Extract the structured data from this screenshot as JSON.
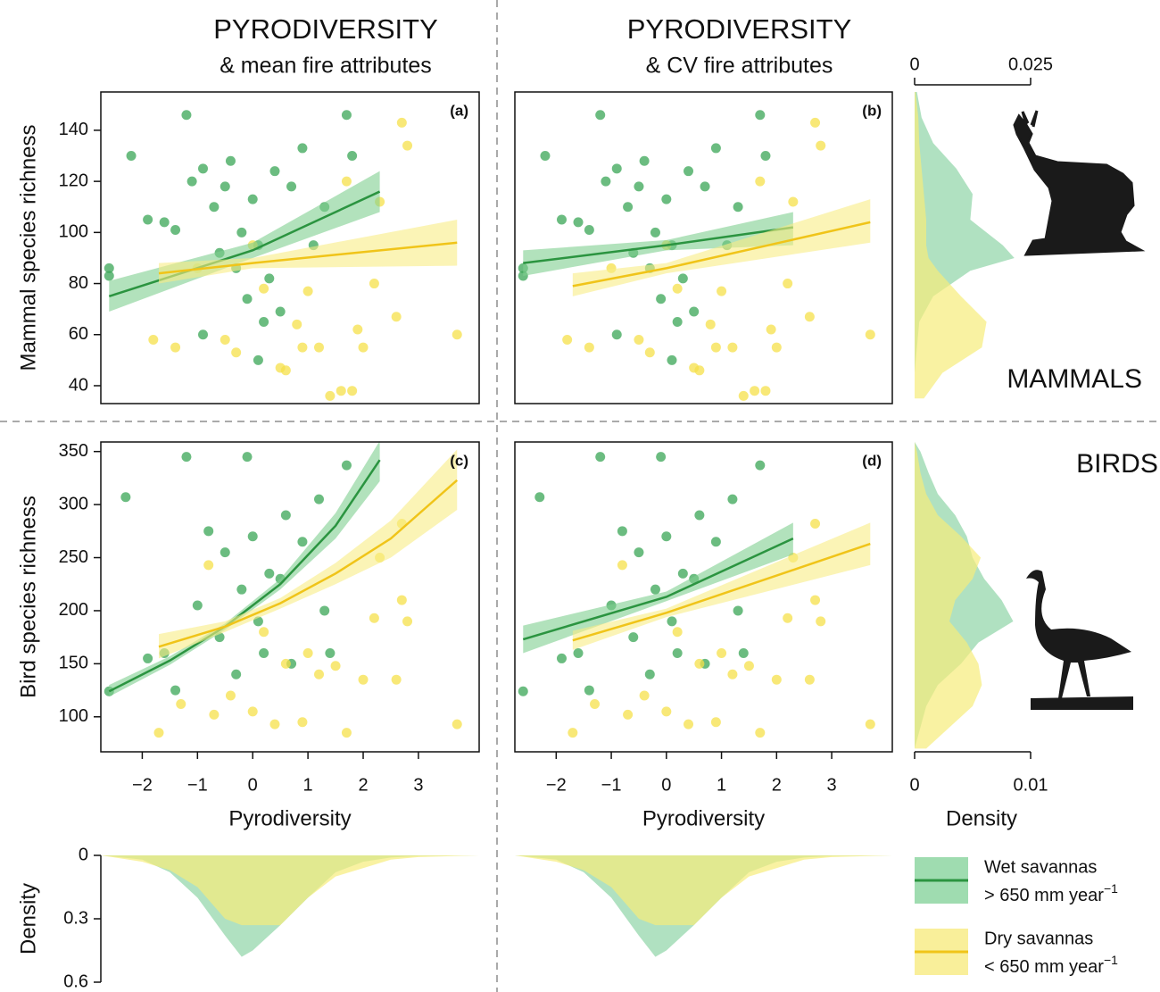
{
  "chart_data": [
    {
      "type": "scatter",
      "title": "PYRODIVERSITY",
      "subtitle": "& mean fire attributes",
      "panel_label": "(a)",
      "y_label": "Mammal species richness",
      "xlim": [
        -2.75,
        4.1
      ],
      "ylim": [
        33,
        155
      ],
      "yticks": [
        40,
        60,
        80,
        100,
        120,
        140
      ],
      "series": [
        {
          "color": "#3aa655",
          "line_color": "#2b9440",
          "band_color": "#7fcf8f",
          "x": [
            -2.6,
            -2.6,
            -2.2,
            -1.9,
            -1.6,
            -1.4,
            -1.2,
            -1.1,
            -0.9,
            -0.7,
            -0.6,
            -0.5,
            -0.4,
            -0.3,
            -0.2,
            -0.1,
            0,
            0.1,
            0.2,
            0.3,
            0.4,
            0.5,
            0.7,
            0.9,
            1.1,
            1.3,
            1.7,
            1.8,
            -0.9,
            0.1
          ],
          "values": [
            86,
            83,
            130,
            105,
            104,
            101,
            146,
            120,
            125,
            110,
            92,
            118,
            128,
            86,
            100,
            74,
            113,
            95,
            65,
            82,
            124,
            69,
            118,
            133,
            95,
            110,
            146,
            130,
            60,
            50
          ],
          "fit": {
            "x": [
              -2.6,
              0,
              2.3
            ],
            "y": [
              75,
              93,
              116
            ],
            "lower": [
              69,
              90,
              108
            ],
            "upper": [
              81,
              96,
              124
            ]
          }
        },
        {
          "color": "#f5e04a",
          "line_color": "#f0c419",
          "band_color": "#f9ec86",
          "x": [
            -1.8,
            -1.4,
            -1.0,
            -0.5,
            -0.3,
            0,
            0.2,
            0.5,
            0.6,
            0.8,
            1.0,
            1.2,
            1.4,
            1.6,
            1.8,
            1.9,
            2.2,
            2.6,
            2.7,
            2.8,
            3.7,
            1.7,
            2.3,
            0.9,
            2.0
          ],
          "values": [
            58,
            55,
            86,
            58,
            53,
            95,
            78,
            47,
            46,
            64,
            77,
            55,
            36,
            38,
            38,
            62,
            80,
            67,
            143,
            134,
            60,
            120,
            112,
            55,
            55
          ],
          "fit": {
            "x": [
              -1.7,
              0,
              3.7
            ],
            "y": [
              84,
              88,
              96
            ],
            "lower": [
              80,
              86,
              87
            ],
            "upper": [
              88,
              90,
              105
            ]
          }
        }
      ]
    },
    {
      "type": "scatter",
      "title": "PYRODIVERSITY",
      "subtitle": "& CV fire attributes",
      "panel_label": "(b)",
      "xlim": [
        -2.75,
        4.1
      ],
      "ylim": [
        33,
        155
      ],
      "series": [
        {
          "color": "#3aa655",
          "line_color": "#2b9440",
          "band_color": "#7fcf8f",
          "x": [
            -2.6,
            -2.6,
            -2.2,
            -1.9,
            -1.6,
            -1.4,
            -1.2,
            -1.1,
            -0.9,
            -0.7,
            -0.6,
            -0.5,
            -0.4,
            -0.3,
            -0.2,
            -0.1,
            0,
            0.1,
            0.2,
            0.3,
            0.4,
            0.5,
            0.7,
            0.9,
            1.1,
            1.3,
            1.7,
            1.8,
            -0.9,
            0.1
          ],
          "values": [
            86,
            83,
            130,
            105,
            104,
            101,
            146,
            120,
            125,
            110,
            92,
            118,
            128,
            86,
            100,
            74,
            113,
            95,
            65,
            82,
            124,
            69,
            118,
            133,
            95,
            110,
            146,
            130,
            60,
            50
          ],
          "fit": {
            "x": [
              -2.6,
              0,
              2.3
            ],
            "y": [
              88,
              95,
              102
            ],
            "lower": [
              83,
              93,
              95
            ],
            "upper": [
              93,
              97,
              108
            ]
          }
        },
        {
          "color": "#f5e04a",
          "line_color": "#f0c419",
          "band_color": "#f9ec86",
          "x": [
            -1.8,
            -1.4,
            -1.0,
            -0.5,
            -0.3,
            0,
            0.2,
            0.5,
            0.6,
            0.8,
            1.0,
            1.2,
            1.4,
            1.6,
            1.8,
            1.9,
            2.2,
            2.6,
            2.7,
            2.8,
            3.7,
            1.7,
            2.3,
            0.9,
            2.0
          ],
          "values": [
            58,
            55,
            86,
            58,
            53,
            95,
            78,
            47,
            46,
            64,
            77,
            55,
            36,
            38,
            38,
            62,
            80,
            67,
            143,
            134,
            60,
            120,
            112,
            55,
            55
          ],
          "fit": {
            "x": [
              -1.7,
              0,
              3.7
            ],
            "y": [
              79,
              86,
              104
            ],
            "lower": [
              75,
              84,
              96
            ],
            "upper": [
              84,
              88,
              113
            ]
          }
        }
      ]
    },
    {
      "type": "scatter",
      "panel_label": "(c)",
      "y_label": "Bird species richness",
      "x_label": "Pyrodiversity",
      "xlim": [
        -2.75,
        4.1
      ],
      "ylim": [
        67,
        359
      ],
      "yticks": [
        100,
        150,
        200,
        250,
        300,
        350
      ],
      "xticks": [
        {
          "value": -2,
          "label": "−2"
        },
        {
          "value": -1,
          "label": "−1"
        },
        0,
        1,
        2,
        3
      ],
      "series": [
        {
          "color": "#3aa655",
          "line_color": "#2b9440",
          "band_color": "#7fcf8f",
          "x": [
            -2.6,
            -2.3,
            -1.9,
            -1.6,
            -1.2,
            -1.0,
            -0.8,
            -0.6,
            -0.5,
            -0.3,
            -0.2,
            0,
            0.1,
            0.3,
            0.5,
            0.7,
            0.9,
            1.2,
            1.4,
            1.7,
            1.3,
            -0.1,
            0.6,
            -1.4,
            0.2
          ],
          "values": [
            124,
            307,
            155,
            160,
            345,
            205,
            275,
            175,
            255,
            140,
            220,
            270,
            190,
            235,
            230,
            150,
            265,
            305,
            160,
            337,
            200,
            345,
            290,
            125,
            160
          ],
          "fit": {
            "x": [
              -2.6,
              -1.5,
              -0.5,
              0.5,
              1.5,
              2.3
            ],
            "y": [
              124,
              153,
              185,
              225,
              280,
              342
            ],
            "lower": [
              119,
              149,
              182,
              220,
              268,
              322
            ],
            "upper": [
              130,
              157,
              188,
              230,
              292,
              360
            ]
          }
        },
        {
          "color": "#f5e04a",
          "line_color": "#f0c419",
          "band_color": "#f9ec86",
          "x": [
            -1.7,
            -1.3,
            -0.7,
            -0.4,
            0,
            0.4,
            0.6,
            0.9,
            1.2,
            1.5,
            1.7,
            2.0,
            2.2,
            2.6,
            2.7,
            2.8,
            3.7,
            2.7,
            1.0,
            2.3,
            -0.8,
            0.2
          ],
          "values": [
            85,
            112,
            102,
            120,
            105,
            93,
            150,
            95,
            140,
            148,
            85,
            135,
            193,
            135,
            210,
            190,
            93,
            282,
            160,
            250,
            243,
            180
          ],
          "fit": {
            "x": [
              -1.7,
              -0.5,
              0.5,
              1.5,
              2.5,
              3.7
            ],
            "y": [
              166,
              185,
              207,
              235,
              268,
              323
            ],
            "lower": [
              155,
              180,
              202,
              225,
              250,
              295
            ],
            "upper": [
              178,
              190,
              212,
              245,
              285,
              352
            ]
          }
        }
      ]
    },
    {
      "type": "scatter",
      "panel_label": "(d)",
      "x_label": "Pyrodiversity",
      "xlim": [
        -2.75,
        4.1
      ],
      "ylim": [
        67,
        359
      ],
      "xticks": [
        {
          "value": -2,
          "label": "−2"
        },
        {
          "value": -1,
          "label": "−1"
        },
        0,
        1,
        2,
        3
      ],
      "series": [
        {
          "color": "#3aa655",
          "line_color": "#2b9440",
          "band_color": "#7fcf8f",
          "x": [
            -2.6,
            -2.3,
            -1.9,
            -1.6,
            -1.2,
            -1.0,
            -0.8,
            -0.6,
            -0.5,
            -0.3,
            -0.2,
            0,
            0.1,
            0.3,
            0.5,
            0.7,
            0.9,
            1.2,
            1.4,
            1.7,
            1.3,
            -0.1,
            0.6,
            -1.4,
            0.2
          ],
          "values": [
            124,
            307,
            155,
            160,
            345,
            205,
            275,
            175,
            255,
            140,
            220,
            270,
            190,
            235,
            230,
            150,
            265,
            305,
            160,
            337,
            200,
            345,
            290,
            125,
            160
          ],
          "fit": {
            "x": [
              -2.6,
              0,
              2.3
            ],
            "y": [
              173,
              213,
              268
            ],
            "lower": [
              160,
              209,
              253
            ],
            "upper": [
              186,
              218,
              283
            ]
          }
        },
        {
          "color": "#f5e04a",
          "line_color": "#f0c419",
          "band_color": "#f9ec86",
          "x": [
            -1.7,
            -1.3,
            -0.7,
            -0.4,
            0,
            0.4,
            0.6,
            0.9,
            1.2,
            1.5,
            1.7,
            2.0,
            2.2,
            2.6,
            2.7,
            2.8,
            3.7,
            2.7,
            1.0,
            2.3,
            -0.8,
            0.2
          ],
          "values": [
            85,
            112,
            102,
            120,
            105,
            93,
            150,
            95,
            140,
            148,
            85,
            135,
            193,
            135,
            210,
            190,
            93,
            282,
            160,
            250,
            243,
            180
          ],
          "fit": {
            "x": [
              -1.7,
              0,
              3.7
            ],
            "y": [
              172,
              198,
              263
            ],
            "lower": [
              163,
              194,
              243
            ],
            "upper": [
              181,
              202,
              283
            ]
          }
        }
      ]
    },
    {
      "type": "area",
      "orientation": "vertical",
      "annotation": "MAMMALS",
      "axis_position": "top",
      "xlim": [
        0,
        0.025
      ],
      "xticks": [
        0,
        0.025
      ],
      "ylim": [
        33,
        155
      ],
      "y": [
        35,
        45,
        55,
        65,
        75,
        85,
        90,
        95,
        105,
        115,
        125,
        135,
        145,
        155
      ],
      "series": [
        {
          "color": "#8fd4a6",
          "values": [
            0,
            0,
            0.0005,
            0.001,
            0.004,
            0.012,
            0.0215,
            0.019,
            0.012,
            0.0125,
            0.009,
            0.004,
            0.0015,
            0.0005
          ]
        },
        {
          "color": "#f7ec7a",
          "values": [
            0.002,
            0.006,
            0.0145,
            0.0155,
            0.01,
            0.005,
            0.003,
            0.0025,
            0.0025,
            0.002,
            0.0015,
            0.001,
            0.0008,
            0.0002
          ]
        }
      ]
    },
    {
      "type": "area",
      "orientation": "vertical",
      "annotation": "BIRDS",
      "axis_position": "bottom",
      "x_label": "Density",
      "xlim": [
        0,
        0.01
      ],
      "xticks": [
        0,
        0.01
      ],
      "ylim": [
        67,
        359
      ],
      "y": [
        70,
        90,
        110,
        130,
        150,
        170,
        190,
        210,
        230,
        250,
        270,
        290,
        310,
        330,
        350,
        359
      ],
      "series": [
        {
          "color": "#8fd4a6",
          "values": [
            0,
            0.0005,
            0.001,
            0.002,
            0.004,
            0.0055,
            0.0085,
            0.0075,
            0.006,
            0.005,
            0.0045,
            0.0035,
            0.002,
            0.0012,
            0.0005,
            0
          ]
        },
        {
          "color": "#f7ec7a",
          "values": [
            0.001,
            0.003,
            0.005,
            0.0058,
            0.0055,
            0.0045,
            0.003,
            0.0035,
            0.005,
            0.0057,
            0.004,
            0.002,
            0.001,
            0.0005,
            0.0002,
            0
          ]
        }
      ]
    },
    {
      "type": "area",
      "orientation": "horizontal",
      "y_label": "Density",
      "y_inverted": true,
      "xlim": [
        -2.75,
        4.1
      ],
      "ylim": [
        0,
        0.6
      ],
      "yticks": [
        0,
        0.3,
        0.6
      ],
      "x": [
        -2.75,
        -2,
        -1.5,
        -1,
        -0.5,
        -0.2,
        0,
        0.5,
        1,
        1.5,
        2,
        2.5,
        3,
        4.1
      ],
      "series": [
        {
          "color": "#8fd4a6",
          "values": [
            0,
            0.02,
            0.08,
            0.2,
            0.38,
            0.48,
            0.45,
            0.33,
            0.2,
            0.08,
            0.03,
            0.01,
            0.003,
            0
          ]
        },
        {
          "color": "#f7ec7a",
          "values": [
            0,
            0.03,
            0.07,
            0.15,
            0.3,
            0.33,
            0.33,
            0.33,
            0.2,
            0.1,
            0.06,
            0.02,
            0.008,
            0
          ]
        }
      ]
    },
    {
      "type": "area",
      "orientation": "horizontal",
      "y_inverted": true,
      "xlim": [
        -2.75,
        4.1
      ],
      "ylim": [
        0,
        0.6
      ],
      "x": [
        -2.75,
        -2,
        -1.5,
        -1,
        -0.5,
        -0.2,
        0,
        0.5,
        1,
        1.5,
        2,
        2.5,
        3,
        4.1
      ],
      "series": [
        {
          "color": "#8fd4a6",
          "values": [
            0,
            0.02,
            0.08,
            0.2,
            0.38,
            0.48,
            0.45,
            0.33,
            0.2,
            0.08,
            0.03,
            0.01,
            0.003,
            0
          ]
        },
        {
          "color": "#f7ec7a",
          "values": [
            0,
            0.03,
            0.07,
            0.15,
            0.3,
            0.33,
            0.33,
            0.33,
            0.2,
            0.1,
            0.06,
            0.02,
            0.008,
            0
          ]
        }
      ]
    }
  ],
  "legend": [
    {
      "label": "Wet savannas",
      "sublabel": "> 650 mm year",
      "superscript": "−1",
      "color": "#2b9440",
      "fill": "#9fdcb0"
    },
    {
      "label": "Dry savannas",
      "sublabel": "< 650 mm year",
      "superscript": "−1",
      "color": "#f0c419",
      "fill": "#f9ef9a"
    }
  ]
}
